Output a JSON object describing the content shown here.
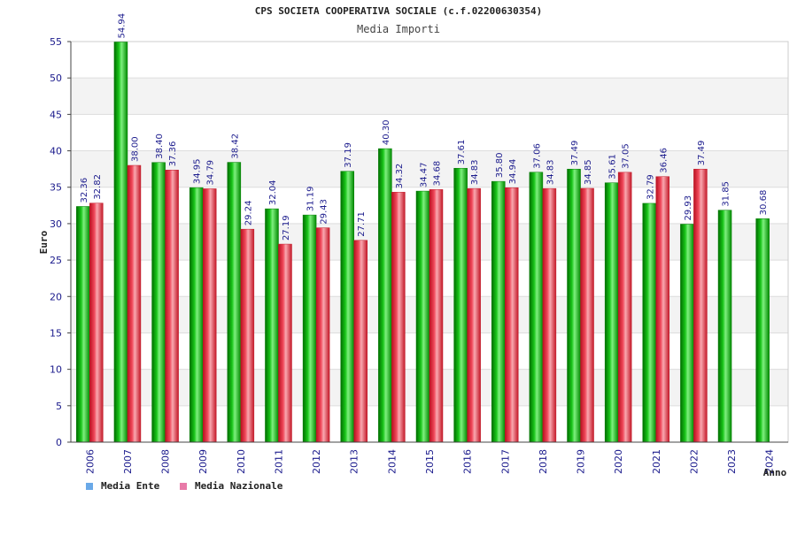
{
  "chart_data": {
    "type": "bar",
    "title": "CPS SOCIETA COOPERATIVA SOCIALE (c.f.02200630354)",
    "subtitle": "Media Importi",
    "ylabel": "Euro",
    "xlabel": "Anno",
    "ylim": [
      0,
      55
    ],
    "yticks": [
      0,
      5,
      10,
      15,
      20,
      25,
      30,
      35,
      40,
      45,
      50,
      55
    ],
    "grid": true,
    "legend_position": "bottom-left",
    "categories": [
      "2006",
      "2007",
      "2008",
      "2009",
      "2010",
      "2011",
      "2012",
      "2013",
      "2014",
      "2015",
      "2016",
      "2017",
      "2018",
      "2019",
      "2020",
      "2021",
      "2022",
      "2023",
      "2024"
    ],
    "series": [
      {
        "name": "Media Ente",
        "color": "#00aa00",
        "legend_color": "#6aa9e8",
        "values": [
          32.36,
          54.94,
          38.4,
          34.95,
          38.42,
          32.04,
          31.19,
          37.19,
          40.3,
          34.47,
          37.61,
          35.8,
          37.06,
          37.49,
          35.61,
          32.79,
          29.93,
          31.85,
          30.68
        ],
        "labels": [
          "32.36",
          "54.94",
          "38.40",
          "34.95",
          "38.42",
          "32.04",
          "31.19",
          "37.19",
          "40.30",
          "34.47",
          "37.61",
          "35.80",
          "37.06",
          "37.49",
          "35.61",
          "32.79",
          "29.93",
          "31.85",
          "30.68"
        ]
      },
      {
        "name": "Media Nazionale",
        "color": "#e8303a",
        "legend_color": "#e87aa8",
        "values": [
          32.82,
          38.0,
          37.36,
          34.79,
          29.24,
          27.19,
          29.43,
          27.71,
          34.32,
          34.68,
          34.83,
          34.94,
          34.83,
          34.85,
          37.05,
          36.46,
          37.49,
          null,
          null
        ],
        "labels": [
          "32.82",
          "38.00",
          "37.36",
          "34.79",
          "29.24",
          "27.19",
          "29.43",
          "27.71",
          "34.32",
          "34.68",
          "34.83",
          "34.94",
          "34.83",
          "34.85",
          "37.05",
          "36.46",
          "37.49",
          "",
          ""
        ]
      }
    ]
  }
}
